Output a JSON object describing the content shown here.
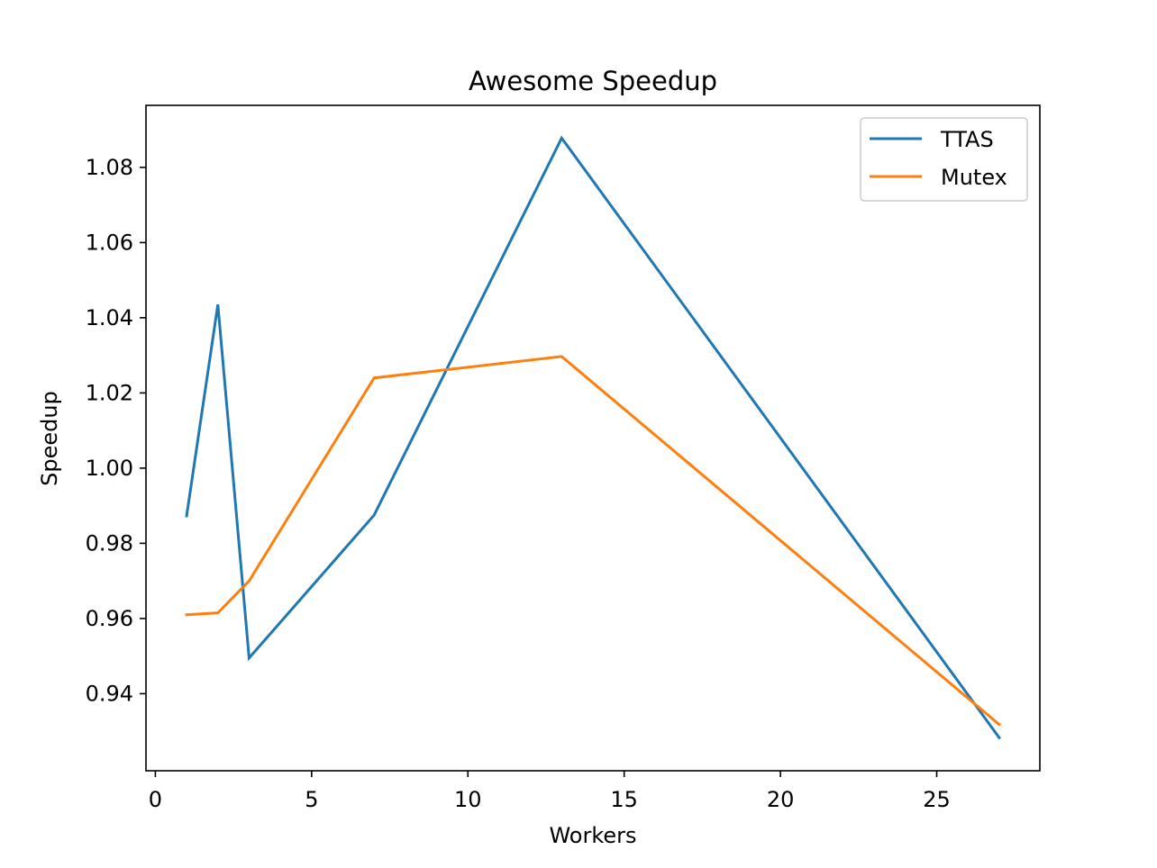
{
  "chart_data": {
    "type": "line",
    "title": "Awesome Speedup",
    "xlabel": "Workers",
    "ylabel": "Speedup",
    "xlim": [
      -0.3,
      28.3
    ],
    "ylim": [
      0.9195,
      1.0965
    ],
    "xticks": [
      0,
      5,
      10,
      15,
      20,
      25
    ],
    "yticks": [
      0.94,
      0.96,
      0.98,
      1.0,
      1.02,
      1.04,
      1.06,
      1.08
    ],
    "xtick_labels": [
      "0",
      "5",
      "10",
      "15",
      "20",
      "25"
    ],
    "ytick_labels": [
      "0.94",
      "0.96",
      "0.98",
      "1.00",
      "1.02",
      "1.04",
      "1.06",
      "1.08"
    ],
    "grid": false,
    "legend_position": "top-right",
    "x": [
      1,
      2,
      3,
      7,
      13,
      27
    ],
    "series": [
      {
        "name": "TTAS",
        "color": "#1f77b4",
        "values": [
          0.9873,
          1.0435,
          0.9495,
          0.9875,
          1.0878,
          0.9283
        ]
      },
      {
        "name": "Mutex",
        "color": "#ff7f0e",
        "values": [
          0.961,
          0.9615,
          0.97,
          1.024,
          1.0297,
          0.9318
        ]
      }
    ]
  }
}
